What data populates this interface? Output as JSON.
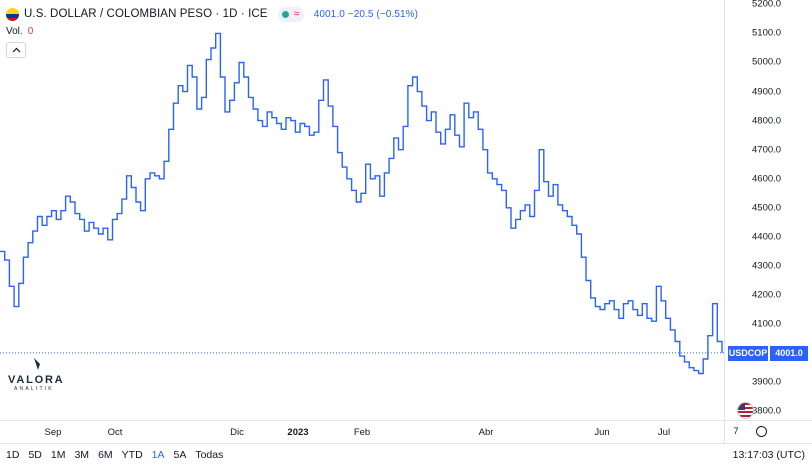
{
  "header": {
    "title": "U.S. DOLLAR / COLOMBIAN PESO · 1D · ICE",
    "quote": "4001.0  −20.5 (−0.51%)"
  },
  "volume": {
    "label": "Vol.",
    "value": "0"
  },
  "icons": [
    "colombia-flag-icon",
    "collapse-chevron-icon",
    "market-status-dot-icon",
    "wave-icon",
    "settings-gear-icon",
    "us-flag-icon",
    "valora-logo"
  ],
  "colors": {
    "line": "#2962ff",
    "price_tag": "#2962ff",
    "down": "#f23645",
    "up": "#26a69a"
  },
  "chart_data": {
    "type": "line",
    "title": "U.S. DOLLAR / COLOMBIAN PESO · 1D · ICE",
    "symbol": "USDCOP",
    "last_price": "4001.0",
    "yaxis_ticks": [
      "5200.0",
      "5100.0",
      "5000.0",
      "4900.0",
      "4800.0",
      "4700.0",
      "4600.0",
      "4500.0",
      "4400.0",
      "4300.0",
      "4200.0",
      "4100.0",
      "3900.0",
      "3800.0"
    ],
    "xaxis_ticks": [
      "Sep",
      "Oct",
      "Dic",
      "2023",
      "Feb",
      "Abr",
      "Jun",
      "Jul",
      "7"
    ],
    "ylim": [
      3770,
      5215
    ],
    "step": true,
    "grid": false,
    "series": [
      {
        "values": [
          4350,
          4320,
          4230,
          4160,
          4240,
          4330,
          4380,
          4420,
          4470,
          4440,
          4470,
          4490,
          4460,
          4490,
          4540,
          4520,
          4480,
          4460,
          4420,
          4450,
          4430,
          4410,
          4430,
          4390,
          4460,
          4480,
          4530,
          4610,
          4570,
          4520,
          4490,
          4600,
          4620,
          4610,
          4600,
          4660,
          4770,
          4860,
          4920,
          4900,
          4990,
          4950,
          4840,
          4880,
          5010,
          5050,
          5100,
          4950,
          4830,
          4870,
          4930,
          5000,
          4950,
          4880,
          4840,
          4800,
          4780,
          4830,
          4810,
          4790,
          4770,
          4810,
          4800,
          4760,
          4790,
          4780,
          4750,
          4760,
          4870,
          4940,
          4850,
          4780,
          4690,
          4640,
          4600,
          4560,
          4520,
          4550,
          4650,
          4600,
          4610,
          4540,
          4620,
          4670,
          4740,
          4700,
          4780,
          4920,
          4950,
          4900,
          4850,
          4800,
          4830,
          4760,
          4720,
          4770,
          4820,
          4750,
          4710,
          4860,
          4810,
          4830,
          4770,
          4700,
          4620,
          4600,
          4580,
          4560,
          4500,
          4430,
          4460,
          4490,
          4510,
          4470,
          4560,
          4700,
          4590,
          4540,
          4580,
          4510,
          4490,
          4470,
          4440,
          4410,
          4330,
          4250,
          4190,
          4160,
          4150,
          4170,
          4180,
          4150,
          4120,
          4170,
          4180,
          4150,
          4130,
          4170,
          4120,
          4110,
          4230,
          4180,
          4120,
          4080,
          4040,
          3990,
          3970,
          3950,
          3940,
          3930,
          3980,
          4060,
          4170,
          4040,
          4001
        ]
      }
    ]
  },
  "bottom_bar": {
    "periods": [
      "1D",
      "5D",
      "1M",
      "3M",
      "6M",
      "YTD",
      "1A",
      "5A",
      "Todas"
    ],
    "active_period": "1A",
    "time": "13:17:03 (UTC)"
  },
  "logo": {
    "name": "VALORA",
    "sub": "ANALITIK"
  }
}
